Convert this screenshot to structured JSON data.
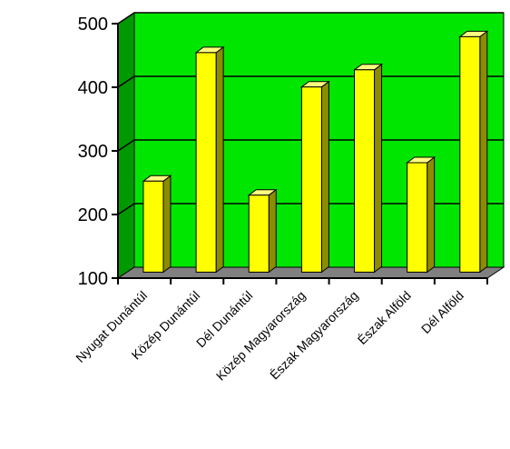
{
  "chart_data": {
    "type": "bar",
    "style": "3d",
    "categories": [
      "Nyugat Dunántúl",
      "Közép Dunántúl",
      "Dél Dunántúl",
      "Közép Magyarország",
      "Észak Magyarország",
      "Észak Alföld",
      "Dél Alföld"
    ],
    "values": [
      243,
      445,
      221,
      391,
      418,
      272,
      470
    ],
    "ylim": [
      100,
      500
    ],
    "yticks": [
      "100",
      "200",
      "300",
      "400",
      "500"
    ],
    "grid": true,
    "legend": "none",
    "colors": {
      "bar_front": "#ffff00",
      "bar_side": "#8c8c00",
      "bar_top": "#ffff80",
      "wall": "#00e600",
      "wall_side": "#009900",
      "floor": "#808080"
    }
  }
}
